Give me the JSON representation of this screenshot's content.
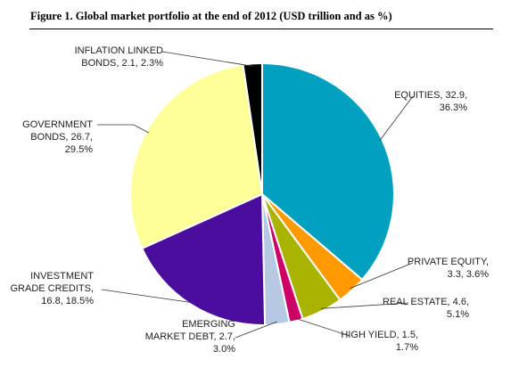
{
  "figure": {
    "title": "Figure 1. Global market portfolio at the end of 2012 (USD trillion and as %)"
  },
  "chart_data": {
    "type": "pie",
    "title": "Figure 1. Global market portfolio at the end of 2012 (USD trillion and as %)",
    "unit": "USD trillion",
    "slices": [
      {
        "label": "EQUITIES",
        "value": 32.9,
        "percent": 36.3,
        "color": "#00A0BE",
        "label_lines": [
          "EQUITIES, 32.9,",
          "36.3%"
        ]
      },
      {
        "label": "PRIVATE EQUITY",
        "value": 3.3,
        "percent": 3.6,
        "color": "#FF9900",
        "label_lines": [
          "PRIVATE EQUITY,",
          "3.3, 3.6%"
        ]
      },
      {
        "label": "REAL ESTATE",
        "value": 4.6,
        "percent": 5.1,
        "color": "#A8B400",
        "label_lines": [
          "REAL ESTATE, 4.6,",
          "5.1%"
        ]
      },
      {
        "label": "HIGH YIELD",
        "value": 1.5,
        "percent": 1.7,
        "color": "#CC0066",
        "label_lines": [
          "HIGH YIELD, 1.5,",
          "1.7%"
        ]
      },
      {
        "label": "EMERGING MARKET DEBT",
        "value": 2.7,
        "percent": 3.0,
        "color": "#B7C9E2",
        "label_lines": [
          "EMERGING",
          "MARKET DEBT, 2.7,",
          "3.0%"
        ]
      },
      {
        "label": "INVESTMENT GRADE CREDITS",
        "value": 16.8,
        "percent": 18.5,
        "color": "#4B0D9E",
        "label_lines": [
          "INVESTMENT",
          "GRADE CREDITS,",
          "16.8, 18.5%"
        ]
      },
      {
        "label": "GOVERNMENT BONDS",
        "value": 26.7,
        "percent": 29.5,
        "color": "#FFFF99",
        "label_lines": [
          "GOVERNMENT",
          "BONDS, 26.7,",
          "29.5%"
        ]
      },
      {
        "label": "INFLATION LINKED BONDS",
        "value": 2.1,
        "percent": 2.3,
        "color": "#000000",
        "label_lines": [
          "INFLATION LINKED",
          "BONDS, 2.1, 2.3%"
        ]
      }
    ]
  }
}
